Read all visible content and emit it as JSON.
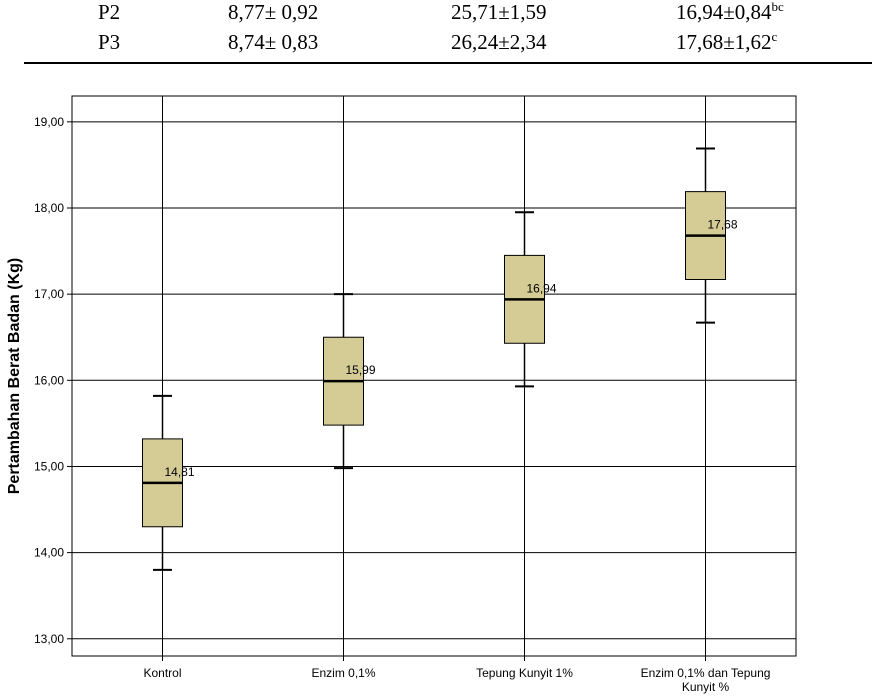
{
  "table": {
    "rows": [
      {
        "label": "P2",
        "c1": "8,77± 0,92",
        "c2": "25,71±1,59",
        "c3": "16,94±0,84",
        "sup": "bc"
      },
      {
        "label": "P3",
        "c1": "8,74± 0,83",
        "c2": "26,24±2,34",
        "c3": "17,68±1,62",
        "sup": "c"
      }
    ]
  },
  "chart_data": {
    "type": "boxplot",
    "title": "",
    "xlabel": "",
    "ylabel": "Pertambahan Berat Badan (Kg)",
    "ylim": [
      12.8,
      19.3
    ],
    "yticks": [
      13,
      14,
      15,
      16,
      17,
      18,
      19
    ],
    "ytick_labels": [
      "13,00",
      "14,00",
      "15,00",
      "16,00",
      "17,00",
      "18,00",
      "19,00"
    ],
    "grid": true,
    "box_color": "#d4cc94",
    "categories": [
      "Kontrol",
      "Enzim 0,1%",
      "Tepung Kunyit 1%",
      "Enzim 0,1% dan Tepung Kunyit %"
    ],
    "boxes": [
      {
        "min": 13.8,
        "q1": 14.3,
        "median": 14.81,
        "q3": 15.32,
        "max": 15.82,
        "label": "14,81"
      },
      {
        "min": 14.98,
        "q1": 15.48,
        "median": 15.99,
        "q3": 16.5,
        "max": 17.0,
        "label": "15,99"
      },
      {
        "min": 15.93,
        "q1": 16.43,
        "median": 16.94,
        "q3": 17.45,
        "max": 17.95,
        "label": "16,94"
      },
      {
        "min": 16.67,
        "q1": 17.17,
        "median": 17.68,
        "q3": 18.19,
        "max": 18.69,
        "label": "17,68"
      }
    ]
  }
}
